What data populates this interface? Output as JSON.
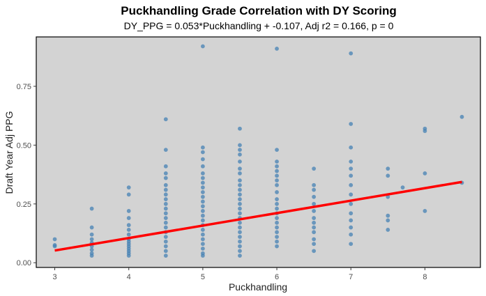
{
  "chart_data": {
    "type": "scatter",
    "title": "Puckhandling Grade Correlation with DY Scoring",
    "subtitle": "DY_PPG = 0.053*Puckhandling + -0.107, Adj r2 = 0.166, p = 0",
    "xlabel": "Puckhandling",
    "ylabel": "Draft Year Adj PPG",
    "xlim": [
      2.75,
      8.75
    ],
    "ylim": [
      -0.02,
      0.96
    ],
    "x_ticks": [
      3,
      4,
      5,
      6,
      7,
      8
    ],
    "x_tick_labels": [
      "3",
      "4",
      "5",
      "6",
      "7",
      "8"
    ],
    "y_ticks": [
      0.0,
      0.25,
      0.5,
      0.75
    ],
    "y_tick_labels": [
      "0.00",
      "0.25",
      "0.50",
      "0.75"
    ],
    "grid": false,
    "legend": "none",
    "colors": {
      "panel": "#d3d3d3",
      "points": "#4682b4",
      "line": "#ff0000"
    },
    "regression": {
      "slope": 0.053,
      "intercept": -0.107,
      "x_range": [
        3,
        8.5
      ]
    },
    "points": [
      {
        "x": 3,
        "y": 0.1
      },
      {
        "x": 3,
        "y": 0.075
      },
      {
        "x": 3,
        "y": 0.07
      },
      {
        "x": 3.5,
        "y": 0.23
      },
      {
        "x": 3.5,
        "y": 0.15
      },
      {
        "x": 3.5,
        "y": 0.12
      },
      {
        "x": 3.5,
        "y": 0.1
      },
      {
        "x": 3.5,
        "y": 0.085
      },
      {
        "x": 3.5,
        "y": 0.07
      },
      {
        "x": 3.5,
        "y": 0.055
      },
      {
        "x": 3.5,
        "y": 0.04
      },
      {
        "x": 3.5,
        "y": 0.03
      },
      {
        "x": 4,
        "y": 0.32
      },
      {
        "x": 4,
        "y": 0.29
      },
      {
        "x": 4,
        "y": 0.22
      },
      {
        "x": 4,
        "y": 0.19
      },
      {
        "x": 4,
        "y": 0.16
      },
      {
        "x": 4,
        "y": 0.14
      },
      {
        "x": 4,
        "y": 0.12
      },
      {
        "x": 4,
        "y": 0.1
      },
      {
        "x": 4,
        "y": 0.09
      },
      {
        "x": 4,
        "y": 0.08
      },
      {
        "x": 4,
        "y": 0.07
      },
      {
        "x": 4,
        "y": 0.06
      },
      {
        "x": 4,
        "y": 0.05
      },
      {
        "x": 4,
        "y": 0.04
      },
      {
        "x": 4,
        "y": 0.03
      },
      {
        "x": 4.5,
        "y": 0.61
      },
      {
        "x": 4.5,
        "y": 0.48
      },
      {
        "x": 4.5,
        "y": 0.41
      },
      {
        "x": 4.5,
        "y": 0.38
      },
      {
        "x": 4.5,
        "y": 0.36
      },
      {
        "x": 4.5,
        "y": 0.33
      },
      {
        "x": 4.5,
        "y": 0.31
      },
      {
        "x": 4.5,
        "y": 0.29
      },
      {
        "x": 4.5,
        "y": 0.27
      },
      {
        "x": 4.5,
        "y": 0.25
      },
      {
        "x": 4.5,
        "y": 0.23
      },
      {
        "x": 4.5,
        "y": 0.21
      },
      {
        "x": 4.5,
        "y": 0.19
      },
      {
        "x": 4.5,
        "y": 0.17
      },
      {
        "x": 4.5,
        "y": 0.15
      },
      {
        "x": 4.5,
        "y": 0.13
      },
      {
        "x": 4.5,
        "y": 0.11
      },
      {
        "x": 4.5,
        "y": 0.09
      },
      {
        "x": 4.5,
        "y": 0.07
      },
      {
        "x": 4.5,
        "y": 0.05
      },
      {
        "x": 4.5,
        "y": 0.03
      },
      {
        "x": 5,
        "y": 0.92
      },
      {
        "x": 5,
        "y": 0.49
      },
      {
        "x": 5,
        "y": 0.47
      },
      {
        "x": 5,
        "y": 0.44
      },
      {
        "x": 5,
        "y": 0.41
      },
      {
        "x": 5,
        "y": 0.38
      },
      {
        "x": 5,
        "y": 0.36
      },
      {
        "x": 5,
        "y": 0.34
      },
      {
        "x": 5,
        "y": 0.32
      },
      {
        "x": 5,
        "y": 0.3
      },
      {
        "x": 5,
        "y": 0.28
      },
      {
        "x": 5,
        "y": 0.26
      },
      {
        "x": 5,
        "y": 0.24
      },
      {
        "x": 5,
        "y": 0.22
      },
      {
        "x": 5,
        "y": 0.2
      },
      {
        "x": 5,
        "y": 0.18
      },
      {
        "x": 5,
        "y": 0.16
      },
      {
        "x": 5,
        "y": 0.14
      },
      {
        "x": 5,
        "y": 0.12
      },
      {
        "x": 5,
        "y": 0.1
      },
      {
        "x": 5,
        "y": 0.08
      },
      {
        "x": 5,
        "y": 0.06
      },
      {
        "x": 5,
        "y": 0.04
      },
      {
        "x": 5,
        "y": 0.03
      },
      {
        "x": 5.5,
        "y": 0.57
      },
      {
        "x": 5.5,
        "y": 0.5
      },
      {
        "x": 5.5,
        "y": 0.48
      },
      {
        "x": 5.5,
        "y": 0.46
      },
      {
        "x": 5.5,
        "y": 0.43
      },
      {
        "x": 5.5,
        "y": 0.4
      },
      {
        "x": 5.5,
        "y": 0.38
      },
      {
        "x": 5.5,
        "y": 0.35
      },
      {
        "x": 5.5,
        "y": 0.33
      },
      {
        "x": 5.5,
        "y": 0.31
      },
      {
        "x": 5.5,
        "y": 0.29
      },
      {
        "x": 5.5,
        "y": 0.27
      },
      {
        "x": 5.5,
        "y": 0.25
      },
      {
        "x": 5.5,
        "y": 0.23
      },
      {
        "x": 5.5,
        "y": 0.21
      },
      {
        "x": 5.5,
        "y": 0.19
      },
      {
        "x": 5.5,
        "y": 0.17
      },
      {
        "x": 5.5,
        "y": 0.15
      },
      {
        "x": 5.5,
        "y": 0.13
      },
      {
        "x": 5.5,
        "y": 0.11
      },
      {
        "x": 5.5,
        "y": 0.09
      },
      {
        "x": 5.5,
        "y": 0.07
      },
      {
        "x": 5.5,
        "y": 0.05
      },
      {
        "x": 5.5,
        "y": 0.03
      },
      {
        "x": 6,
        "y": 0.91
      },
      {
        "x": 6,
        "y": 0.48
      },
      {
        "x": 6,
        "y": 0.43
      },
      {
        "x": 6,
        "y": 0.41
      },
      {
        "x": 6,
        "y": 0.39
      },
      {
        "x": 6,
        "y": 0.37
      },
      {
        "x": 6,
        "y": 0.35
      },
      {
        "x": 6,
        "y": 0.33
      },
      {
        "x": 6,
        "y": 0.3
      },
      {
        "x": 6,
        "y": 0.27
      },
      {
        "x": 6,
        "y": 0.25
      },
      {
        "x": 6,
        "y": 0.23
      },
      {
        "x": 6,
        "y": 0.21
      },
      {
        "x": 6,
        "y": 0.19
      },
      {
        "x": 6,
        "y": 0.17
      },
      {
        "x": 6,
        "y": 0.15
      },
      {
        "x": 6,
        "y": 0.13
      },
      {
        "x": 6,
        "y": 0.11
      },
      {
        "x": 6,
        "y": 0.09
      },
      {
        "x": 6,
        "y": 0.07
      },
      {
        "x": 6.5,
        "y": 0.4
      },
      {
        "x": 6.5,
        "y": 0.33
      },
      {
        "x": 6.5,
        "y": 0.31
      },
      {
        "x": 6.5,
        "y": 0.28
      },
      {
        "x": 6.5,
        "y": 0.25
      },
      {
        "x": 6.5,
        "y": 0.22
      },
      {
        "x": 6.5,
        "y": 0.19
      },
      {
        "x": 6.5,
        "y": 0.17
      },
      {
        "x": 6.5,
        "y": 0.15
      },
      {
        "x": 6.5,
        "y": 0.13
      },
      {
        "x": 6.5,
        "y": 0.1
      },
      {
        "x": 6.5,
        "y": 0.08
      },
      {
        "x": 6.5,
        "y": 0.05
      },
      {
        "x": 7,
        "y": 0.89
      },
      {
        "x": 7,
        "y": 0.59
      },
      {
        "x": 7,
        "y": 0.49
      },
      {
        "x": 7,
        "y": 0.43
      },
      {
        "x": 7,
        "y": 0.4
      },
      {
        "x": 7,
        "y": 0.37
      },
      {
        "x": 7,
        "y": 0.33
      },
      {
        "x": 7,
        "y": 0.29
      },
      {
        "x": 7,
        "y": 0.25
      },
      {
        "x": 7,
        "y": 0.21
      },
      {
        "x": 7,
        "y": 0.18
      },
      {
        "x": 7,
        "y": 0.15
      },
      {
        "x": 7,
        "y": 0.12
      },
      {
        "x": 7,
        "y": 0.08
      },
      {
        "x": 7.5,
        "y": 0.4
      },
      {
        "x": 7.5,
        "y": 0.37
      },
      {
        "x": 7.5,
        "y": 0.28
      },
      {
        "x": 7.5,
        "y": 0.2
      },
      {
        "x": 7.5,
        "y": 0.18
      },
      {
        "x": 7.5,
        "y": 0.14
      },
      {
        "x": 7.7,
        "y": 0.32
      },
      {
        "x": 8,
        "y": 0.57
      },
      {
        "x": 8,
        "y": 0.56
      },
      {
        "x": 8,
        "y": 0.38
      },
      {
        "x": 8,
        "y": 0.22
      },
      {
        "x": 8.5,
        "y": 0.62
      },
      {
        "x": 8.5,
        "y": 0.34
      }
    ]
  }
}
